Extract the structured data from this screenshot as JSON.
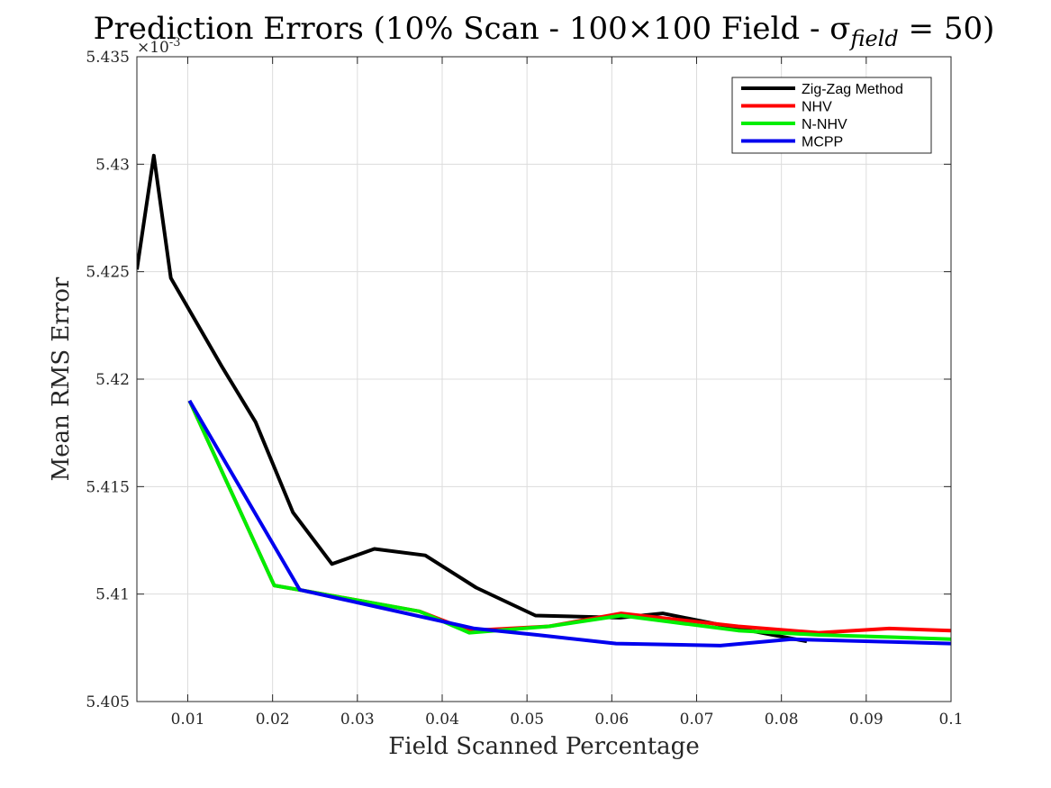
{
  "chart_data": {
    "type": "line",
    "title": "Prediction Errors (10% Scan - 100×100 Field - σ",
    "title_subscript": "field",
    "title_suffix": " = 50)",
    "xlabel": "Field Scanned Percentage",
    "ylabel": "Mean RMS Error",
    "y_exponent_label": "×10",
    "y_exponent_power": "-3",
    "xlim": [
      0.004,
      0.1
    ],
    "ylim": [
      5.405,
      5.435
    ],
    "x_ticks": [
      0.01,
      0.02,
      0.03,
      0.04,
      0.05,
      0.06,
      0.07,
      0.08,
      0.09,
      0.1
    ],
    "x_tick_labels": [
      "0.01",
      "0.02",
      "0.03",
      "0.04",
      "0.05",
      "0.06",
      "0.07",
      "0.08",
      "0.09",
      "0.1"
    ],
    "y_ticks": [
      5.405,
      5.41,
      5.415,
      5.42,
      5.425,
      5.43,
      5.435
    ],
    "y_tick_labels": [
      "5.405",
      "5.41",
      "5.415",
      "5.42",
      "5.425",
      "5.43",
      "5.435"
    ],
    "grid": true,
    "legend_position": "top-right",
    "series": [
      {
        "name": "Zig-Zag Method",
        "color": "#000000",
        "x": [
          0.004,
          0.006,
          0.008,
          0.014,
          0.018,
          0.0224,
          0.027,
          0.032,
          0.038,
          0.044,
          0.051,
          0.061,
          0.066,
          0.075,
          0.083
        ],
        "y": [
          5.4251,
          5.4304,
          5.4247,
          5.4206,
          5.418,
          5.4138,
          5.4114,
          5.4121,
          5.4118,
          5.4103,
          5.409,
          5.4089,
          5.4091,
          5.4084,
          5.4078
        ]
      },
      {
        "name": "NHV",
        "color": "#ff0000",
        "x": [
          0.0102,
          0.0202,
          0.0231,
          0.0373,
          0.0432,
          0.0526,
          0.0611,
          0.0749,
          0.0844,
          0.0927,
          0.1
        ],
        "y": [
          5.419,
          5.4104,
          5.4102,
          5.4092,
          5.4083,
          5.4085,
          5.4091,
          5.4085,
          5.4082,
          5.4084,
          5.4083
        ]
      },
      {
        "name": "N-NHV",
        "color": "#00ee00",
        "x": [
          0.0102,
          0.0202,
          0.0231,
          0.0373,
          0.0432,
          0.0526,
          0.0611,
          0.0749,
          0.0844,
          0.0927,
          0.1
        ],
        "y": [
          5.419,
          5.4104,
          5.4102,
          5.4092,
          5.4082,
          5.4085,
          5.409,
          5.4083,
          5.4081,
          5.408,
          5.4079
        ]
      },
      {
        "name": "MCPP",
        "color": "#0000ee",
        "x": [
          0.0102,
          0.0232,
          0.0438,
          0.0512,
          0.0605,
          0.0728,
          0.0812,
          0.1
        ],
        "y": [
          5.419,
          5.4102,
          5.4084,
          5.4081,
          5.4077,
          5.4076,
          5.4079,
          5.4077
        ]
      }
    ]
  }
}
